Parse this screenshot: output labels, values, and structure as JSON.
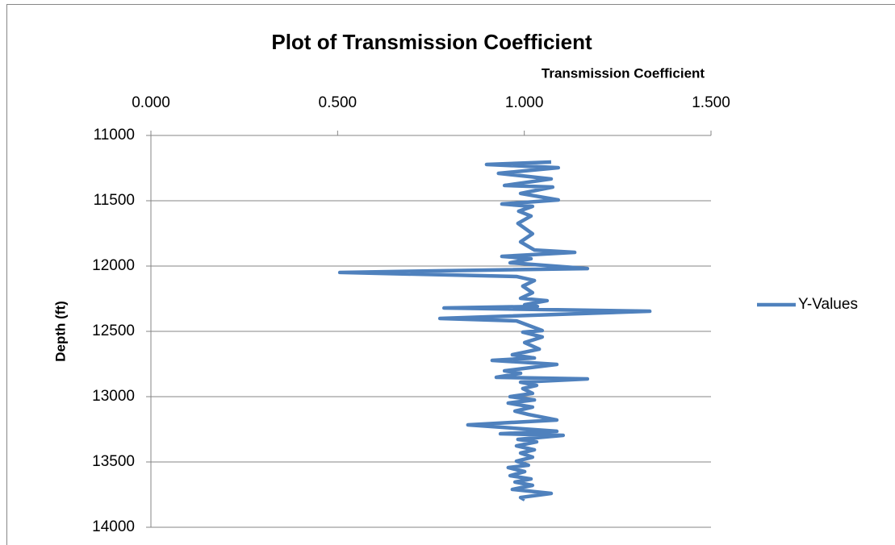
{
  "chart_data": {
    "type": "line",
    "title": "Plot of Transmission Coefficient",
    "x_label": "Transmission Coefficient",
    "y_label": "Depth (ft)",
    "x_axis_position": "top",
    "y_reversed": true,
    "grid": true,
    "legend": "right",
    "xlim": [
      0,
      1.5
    ],
    "xticks": [
      {
        "value": 0,
        "label": "0.000"
      },
      {
        "value": 0.5,
        "label": "0.500"
      },
      {
        "value": 1,
        "label": "1.000"
      },
      {
        "value": 1.5,
        "label": "1.500"
      }
    ],
    "ylim": [
      11000,
      14000
    ],
    "yticks": [
      11000,
      11500,
      12000,
      12500,
      13000,
      13500,
      14000
    ],
    "series": [
      {
        "name": "Y-Values",
        "color": "#4f81bd",
        "x": [
          1.072,
          0.899,
          1.091,
          0.931,
          1.072,
          0.947,
          1.076,
          0.99,
          1.091,
          0.94,
          1.022,
          0.985,
          1.018,
          0.983,
          1.022,
          0.99,
          1.027,
          1.135,
          0.94,
          1.018,
          0.962,
          1.169,
          0.506,
          0.979,
          1.027,
          0.996,
          1.022,
          0.99,
          1.061,
          1.001,
          1.035,
          0.785,
          1.336,
          0.774,
          0.979,
          1.048,
          0.996,
          1.048,
          1.001,
          1.04,
          0.968,
          1.027,
          0.914,
          1.087,
          0.947,
          0.99,
          0.925,
          1.169,
          0.99,
          1.033,
          0.996,
          1.022,
          0.962,
          1.027,
          0.957,
          1.022,
          0.975,
          1.011,
          1.087,
          0.849,
          1.087,
          0.936,
          1.104,
          0.983,
          1.033,
          0.979,
          1.027,
          0.99,
          1.022,
          0.979,
          1.011,
          0.957,
          1.001,
          0.962,
          1.018,
          0.975,
          1.022,
          0.968,
          1.072,
          0.99,
          1.001
        ],
        "values": [
          11204,
          11222,
          11247,
          11290,
          11333,
          11383,
          11395,
          11444,
          11494,
          11525,
          11543,
          11580,
          11617,
          11673,
          11753,
          11815,
          11877,
          11895,
          11926,
          11944,
          11975,
          12019,
          12049,
          12080,
          12111,
          12154,
          12204,
          12247,
          12265,
          12296,
          12309,
          12321,
          12346,
          12401,
          12420,
          12494,
          12506,
          12543,
          12586,
          12636,
          12679,
          12704,
          12722,
          12753,
          12802,
          12821,
          12852,
          12864,
          12889,
          12914,
          12938,
          12975,
          13000,
          13025,
          13049,
          13080,
          13111,
          13136,
          13179,
          13216,
          13265,
          13284,
          13296,
          13327,
          13346,
          13377,
          13407,
          13432,
          13463,
          13494,
          13525,
          13543,
          13574,
          13605,
          13630,
          13654,
          13679,
          13710,
          13741,
          13772,
          13790
        ]
      }
    ]
  }
}
